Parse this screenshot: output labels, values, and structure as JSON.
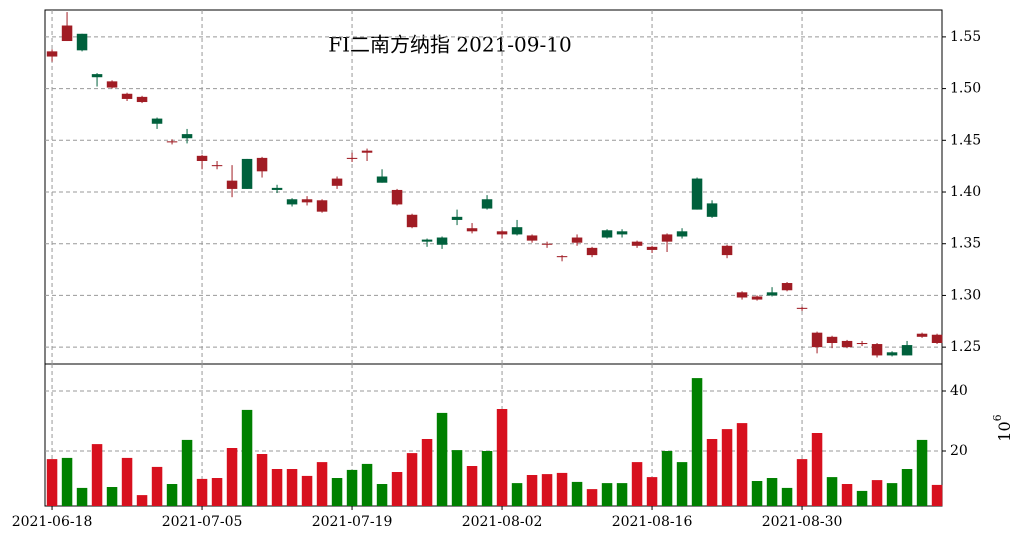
{
  "chart_data": {
    "type": "candlestick",
    "title": "FI二南方纳指 2021-09-10",
    "up_color": "#a01c24",
    "down_color": "#00603c",
    "grid": true,
    "xlim": [
      -0.47,
      59.33
    ],
    "xticks": [
      {
        "value": 0,
        "label": "2021-06-18"
      },
      {
        "value": 10,
        "label": "2021-07-05"
      },
      {
        "value": 20,
        "label": "2021-07-19"
      },
      {
        "value": 30,
        "label": "2021-08-02"
      },
      {
        "value": 40,
        "label": "2021-08-16"
      },
      {
        "value": 50,
        "label": "2021-08-30"
      }
    ],
    "ylim": [
      1.2337,
      1.576
    ],
    "yticks": [
      1.25,
      {
        "value": 1.3,
        "label": "1.30"
      },
      1.35,
      {
        "value": 1.4,
        "label": "1.40"
      },
      1.45,
      {
        "value": 1.5,
        "label": "1.50"
      },
      1.55
    ],
    "open": [
      1.531,
      1.546,
      1.553,
      1.514,
      1.501,
      1.49,
      1.487,
      1.471,
      1.448,
      1.456,
      1.43,
      1.425,
      1.403,
      1.432,
      1.42,
      1.404,
      1.393,
      1.39,
      1.381,
      1.406,
      1.432,
      1.438,
      1.415,
      1.388,
      1.366,
      1.354,
      1.356,
      1.376,
      1.362,
      1.393,
      1.359,
      1.366,
      1.353,
      1.349,
      1.337,
      1.351,
      1.339,
      1.363,
      1.362,
      1.348,
      1.344,
      1.352,
      1.362,
      1.413,
      1.389,
      1.339,
      1.298,
      1.296,
      1.303,
      1.305,
      1.287,
      1.25,
      1.254,
      1.25,
      1.253,
      1.242,
      1.245,
      1.252,
      1.26,
      1.254
    ],
    "high": [
      1.538,
      1.574,
      1.553,
      1.515,
      1.508,
      1.496,
      1.493,
      1.472,
      1.451,
      1.461,
      1.436,
      1.43,
      1.426,
      1.432,
      1.434,
      1.407,
      1.394,
      1.396,
      1.393,
      1.415,
      1.438,
      1.442,
      1.422,
      1.403,
      1.379,
      1.355,
      1.357,
      1.383,
      1.37,
      1.397,
      1.363,
      1.373,
      1.359,
      1.352,
      1.339,
      1.359,
      1.347,
      1.364,
      1.364,
      1.353,
      1.348,
      1.36,
      1.365,
      1.414,
      1.392,
      1.349,
      1.304,
      1.3,
      1.308,
      1.313,
      1.289,
      1.265,
      1.261,
      1.257,
      1.256,
      1.254,
      1.246,
      1.256,
      1.264,
      1.263
    ],
    "low": [
      1.526,
      1.546,
      1.536,
      1.502,
      1.5,
      1.488,
      1.486,
      1.461,
      1.446,
      1.447,
      1.422,
      1.422,
      1.395,
      1.403,
      1.414,
      1.399,
      1.386,
      1.387,
      1.38,
      1.403,
      1.429,
      1.43,
      1.409,
      1.387,
      1.365,
      1.347,
      1.345,
      1.368,
      1.36,
      1.383,
      1.355,
      1.358,
      1.351,
      1.346,
      1.333,
      1.348,
      1.337,
      1.355,
      1.356,
      1.346,
      1.341,
      1.342,
      1.355,
      1.383,
      1.375,
      1.336,
      1.296,
      1.295,
      1.299,
      1.304,
      1.285,
      1.244,
      1.249,
      1.249,
      1.251,
      1.24,
      1.241,
      1.242,
      1.259,
      1.253
    ],
    "close": [
      1.536,
      1.561,
      1.537,
      1.511,
      1.507,
      1.495,
      1.492,
      1.466,
      1.449,
      1.452,
      1.435,
      1.426,
      1.411,
      1.403,
      1.433,
      1.402,
      1.388,
      1.393,
      1.392,
      1.413,
      1.433,
      1.44,
      1.409,
      1.402,
      1.378,
      1.352,
      1.349,
      1.373,
      1.365,
      1.384,
      1.362,
      1.359,
      1.358,
      1.35,
      1.338,
      1.356,
      1.346,
      1.356,
      1.359,
      1.352,
      1.347,
      1.359,
      1.357,
      1.383,
      1.376,
      1.348,
      1.303,
      1.299,
      1.3,
      1.312,
      1.288,
      1.264,
      1.26,
      1.256,
      1.254,
      1.253,
      1.242,
      1.242,
      1.263,
      1.262
    ],
    "volume": {
      "label_base": "10",
      "label_exponent": "6",
      "ylim": [
        1.67,
        49
      ],
      "yticks": [
        20,
        40
      ],
      "values": [
        17.3,
        17.7,
        7.7,
        22.3,
        8,
        17.7,
        5.3,
        14.7,
        9,
        23.7,
        10.7,
        11,
        21,
        33.7,
        19,
        14,
        14,
        11.7,
        16.3,
        11,
        13.7,
        15.7,
        9,
        13,
        19.3,
        24,
        32.7,
        20.3,
        15,
        20,
        34,
        9.3,
        12,
        12.3,
        12.7,
        9.7,
        7.3,
        9.3,
        9.3,
        16.3,
        11.3,
        20,
        16.3,
        44.3,
        24,
        27.3,
        29.3,
        10,
        11,
        7.7,
        17.3,
        26,
        11.3,
        9,
        6.7,
        10.3,
        9.3,
        14,
        23.7,
        8.7
      ],
      "colors": [
        "#d7101e",
        "#008000",
        "#008000",
        "#d7101e",
        "#008000",
        "#d7101e",
        "#d7101e",
        "#d7101e",
        "#008000",
        "#008000",
        "#d7101e",
        "#d7101e",
        "#d7101e",
        "#008000",
        "#d7101e",
        "#d7101e",
        "#d7101e",
        "#d7101e",
        "#d7101e",
        "#008000",
        "#008000",
        "#008000",
        "#008000",
        "#d7101e",
        "#d7101e",
        "#d7101e",
        "#008000",
        "#008000",
        "#d7101e",
        "#008000",
        "#d7101e",
        "#008000",
        "#d7101e",
        "#d7101e",
        "#d7101e",
        "#008000",
        "#d7101e",
        "#008000",
        "#008000",
        "#d7101e",
        "#d7101e",
        "#008000",
        "#008000",
        "#008000",
        "#d7101e",
        "#d7101e",
        "#d7101e",
        "#008000",
        "#008000",
        "#008000",
        "#d7101e",
        "#d7101e",
        "#008000",
        "#d7101e",
        "#008000",
        "#d7101e",
        "#008000",
        "#008000",
        "#008000",
        "#d7101e"
      ]
    }
  }
}
